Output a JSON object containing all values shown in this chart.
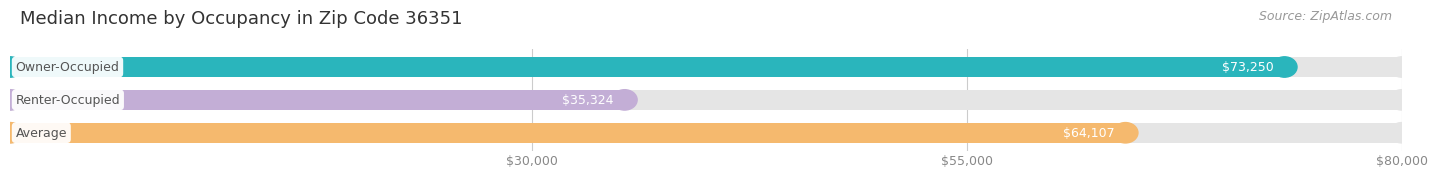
{
  "title": "Median Income by Occupancy in Zip Code 36351",
  "source": "Source: ZipAtlas.com",
  "categories": [
    "Owner-Occupied",
    "Renter-Occupied",
    "Average"
  ],
  "values": [
    73250,
    35324,
    64107
  ],
  "labels": [
    "$73,250",
    "$35,324",
    "$64,107"
  ],
  "bar_colors": [
    "#2ab5bc",
    "#c3aed6",
    "#f5b96e"
  ],
  "bar_bg_color": "#e5e5e5",
  "xlim_max": 80000,
  "xticks": [
    30000,
    55000,
    80000
  ],
  "xticklabels": [
    "$30,000",
    "$55,000",
    "$80,000"
  ],
  "title_fontsize": 13,
  "source_fontsize": 9,
  "label_fontsize": 9,
  "cat_fontsize": 9,
  "tick_fontsize": 9,
  "background_color": "#ffffff",
  "label_inside_color": "white",
  "label_outside_color": "#555555",
  "cat_label_color": "#555555",
  "grid_color": "#cccccc",
  "tick_color": "#888888"
}
